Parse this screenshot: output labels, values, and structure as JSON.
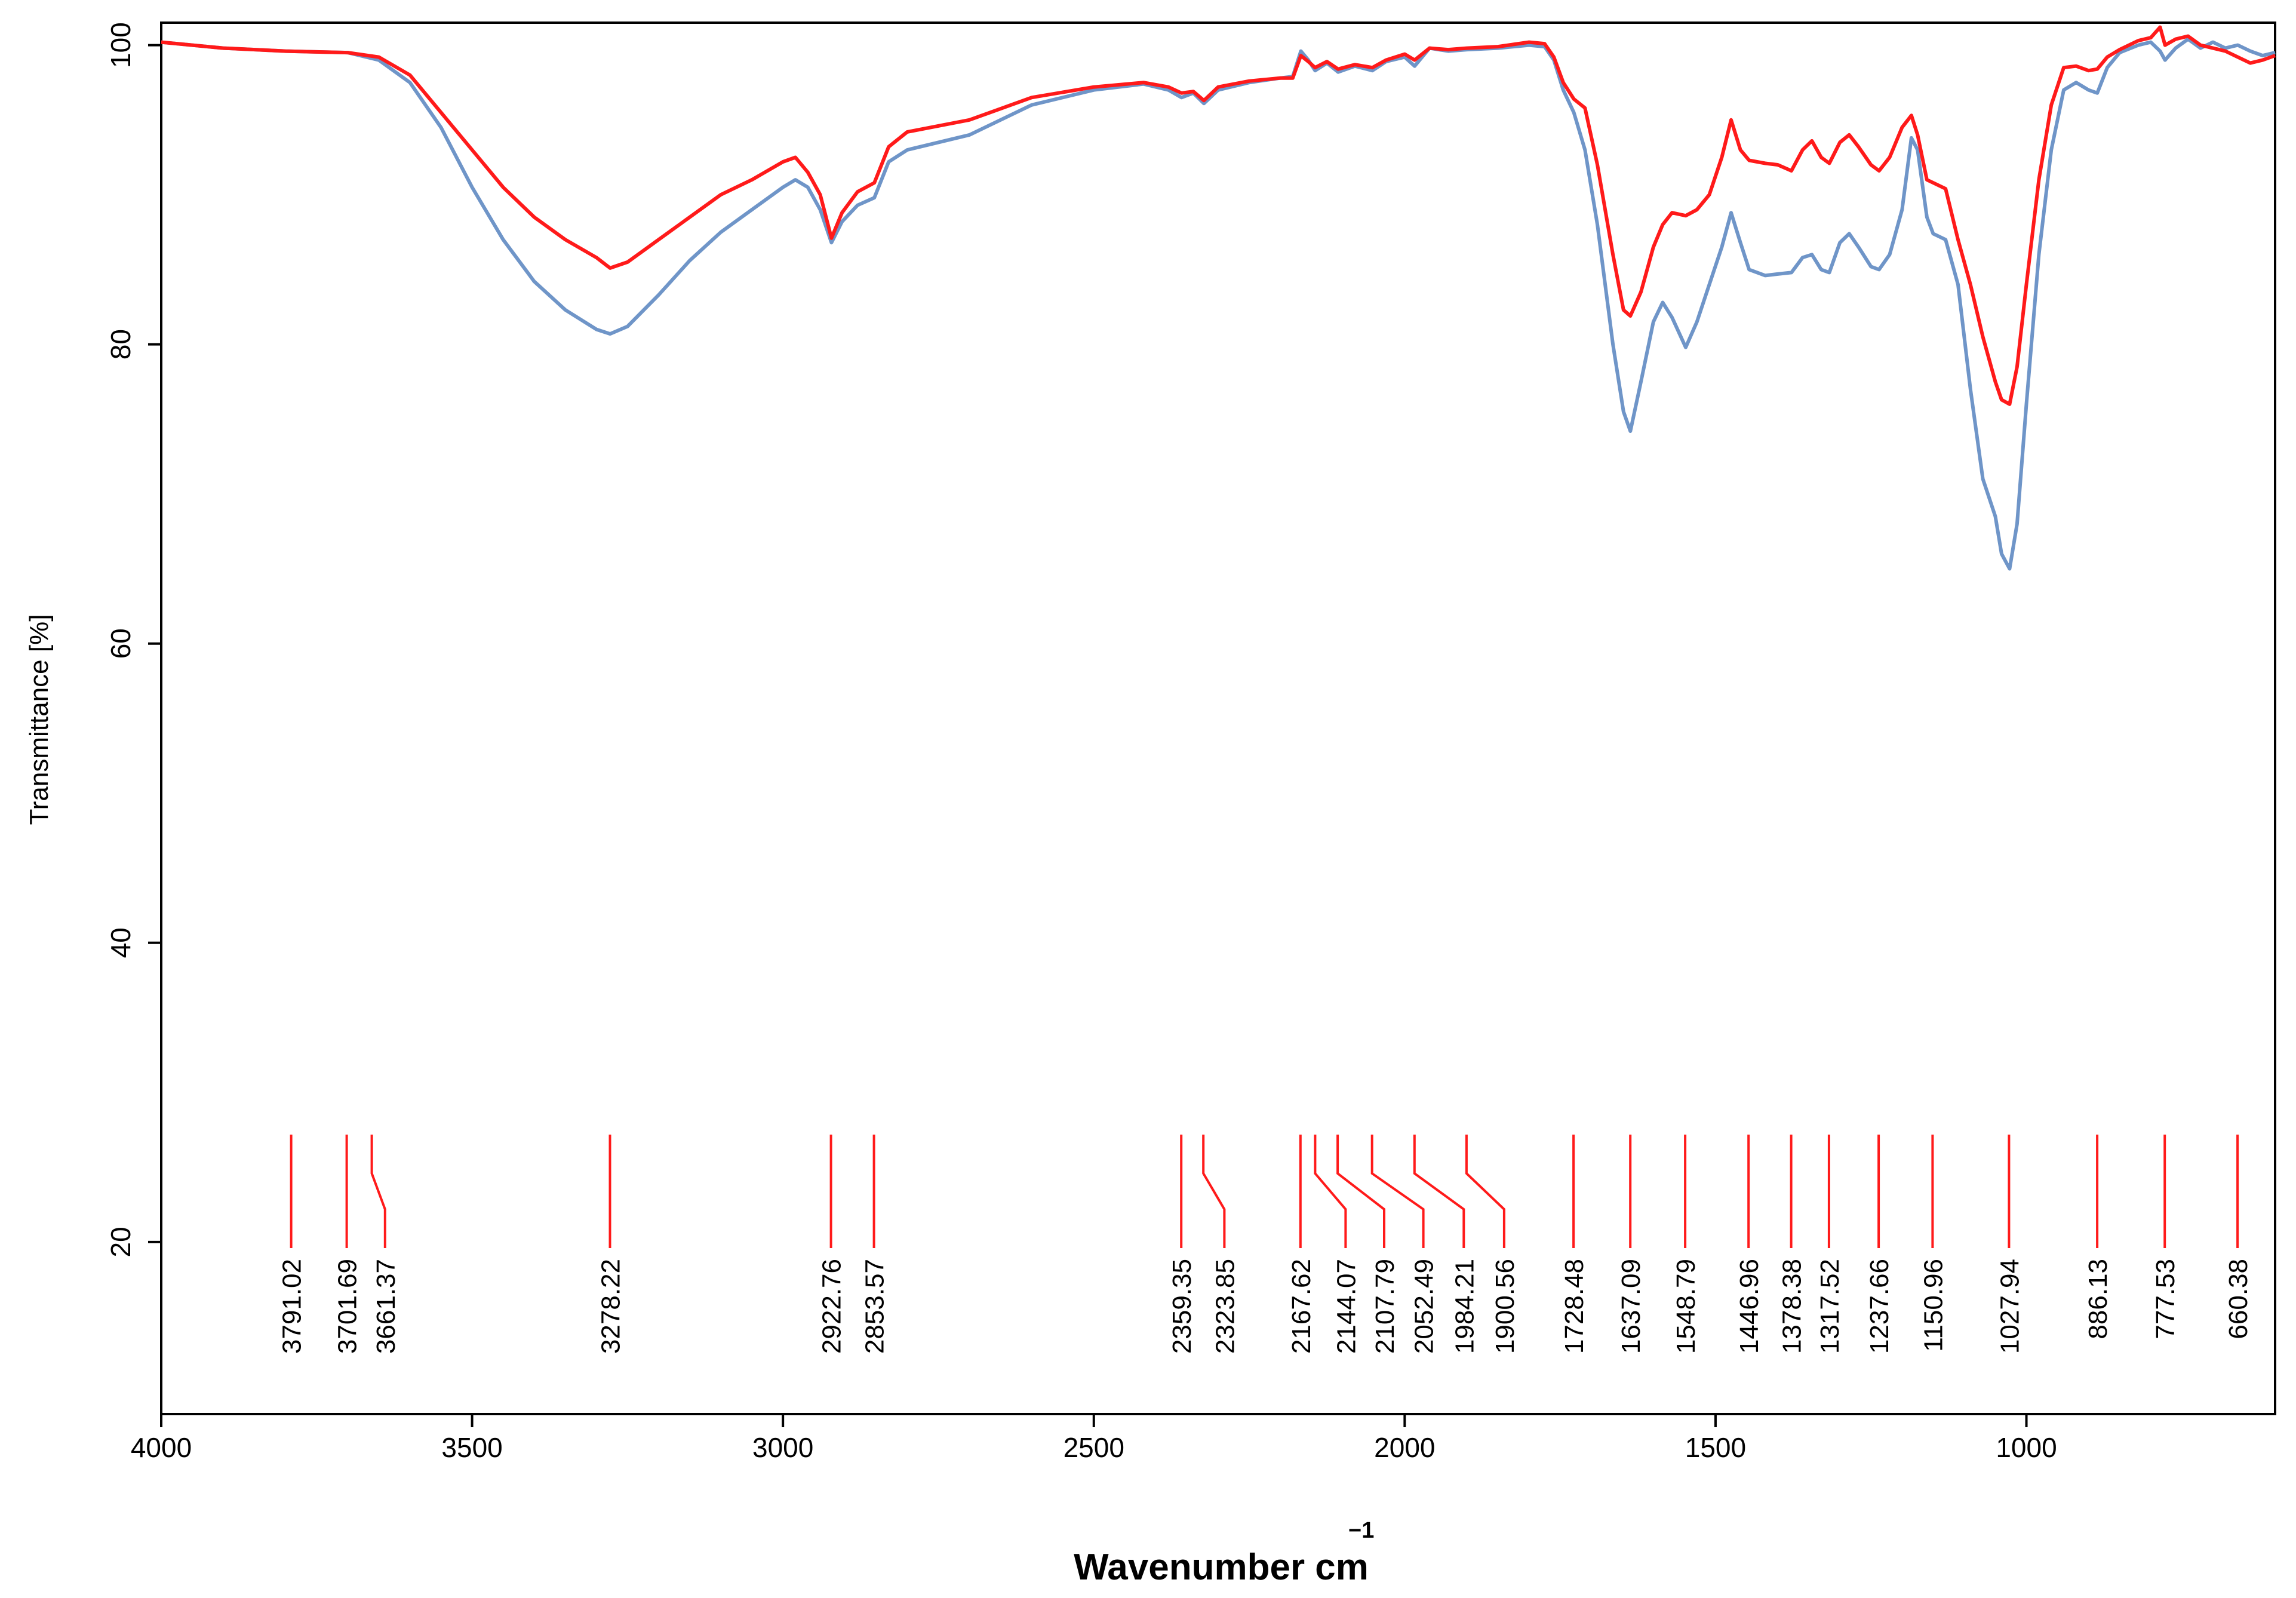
{
  "chart_data": {
    "type": "line",
    "xlabel": "Wavenumber cm",
    "xlabel_superscript": "−1",
    "ylabel": "Transmittance [%]",
    "xlim": [
      4000,
      600
    ],
    "ylim": [
      8.5,
      101.5
    ],
    "x_reversed": true,
    "x_ticks": [
      4000,
      3500,
      3000,
      2500,
      2000,
      1500,
      1000
    ],
    "x_tick_labels": [
      "4000",
      "3500",
      "3000",
      "2500",
      "2000",
      "1500",
      "1000"
    ],
    "y_ticks": [
      20,
      40,
      60,
      80,
      100
    ],
    "y_tick_labels": [
      "20",
      "40",
      "60",
      "80",
      "100"
    ],
    "grid": false,
    "series": [
      {
        "color": "#6f95c8",
        "points": [
          [
            4000,
            100.2
          ],
          [
            3900,
            99.8
          ],
          [
            3800,
            99.6
          ],
          [
            3700,
            99.5
          ],
          [
            3650,
            99.0
          ],
          [
            3600,
            97.5
          ],
          [
            3550,
            94.5
          ],
          [
            3500,
            90.5
          ],
          [
            3450,
            87.0
          ],
          [
            3400,
            84.2
          ],
          [
            3350,
            82.3
          ],
          [
            3300,
            81.0
          ],
          [
            3278,
            80.7
          ],
          [
            3250,
            81.2
          ],
          [
            3200,
            83.3
          ],
          [
            3150,
            85.6
          ],
          [
            3100,
            87.5
          ],
          [
            3050,
            89.0
          ],
          [
            3000,
            90.5
          ],
          [
            2980,
            91.0
          ],
          [
            2960,
            90.5
          ],
          [
            2940,
            89.0
          ],
          [
            2922,
            86.8
          ],
          [
            2905,
            88.2
          ],
          [
            2880,
            89.3
          ],
          [
            2853,
            89.8
          ],
          [
            2830,
            92.2
          ],
          [
            2800,
            93.0
          ],
          [
            2700,
            94.0
          ],
          [
            2600,
            96.0
          ],
          [
            2500,
            97.0
          ],
          [
            2420,
            97.4
          ],
          [
            2380,
            97.0
          ],
          [
            2359,
            96.5
          ],
          [
            2340,
            96.8
          ],
          [
            2323,
            96.1
          ],
          [
            2300,
            97.0
          ],
          [
            2250,
            97.5
          ],
          [
            2200,
            97.8
          ],
          [
            2180,
            97.9
          ],
          [
            2167,
            99.6
          ],
          [
            2155,
            99.0
          ],
          [
            2144,
            98.3
          ],
          [
            2125,
            98.8
          ],
          [
            2107,
            98.2
          ],
          [
            2080,
            98.6
          ],
          [
            2052,
            98.3
          ],
          [
            2030,
            98.9
          ],
          [
            2000,
            99.2
          ],
          [
            1984,
            98.6
          ],
          [
            1960,
            99.8
          ],
          [
            1930,
            99.6
          ],
          [
            1900,
            99.7
          ],
          [
            1850,
            99.8
          ],
          [
            1800,
            100.0
          ],
          [
            1775,
            99.9
          ],
          [
            1760,
            99.0
          ],
          [
            1745,
            97.0
          ],
          [
            1728,
            95.5
          ],
          [
            1710,
            93.0
          ],
          [
            1690,
            88.0
          ],
          [
            1665,
            80.0
          ],
          [
            1648,
            75.5
          ],
          [
            1637,
            74.2
          ],
          [
            1620,
            77.5
          ],
          [
            1600,
            81.5
          ],
          [
            1585,
            82.8
          ],
          [
            1570,
            81.8
          ],
          [
            1548,
            79.8
          ],
          [
            1530,
            81.5
          ],
          [
            1510,
            84.0
          ],
          [
            1490,
            86.5
          ],
          [
            1475,
            88.8
          ],
          [
            1460,
            86.8
          ],
          [
            1446,
            85.0
          ],
          [
            1420,
            84.6
          ],
          [
            1400,
            84.7
          ],
          [
            1378,
            84.8
          ],
          [
            1360,
            85.8
          ],
          [
            1345,
            86.0
          ],
          [
            1330,
            85.0
          ],
          [
            1317,
            84.8
          ],
          [
            1300,
            86.8
          ],
          [
            1285,
            87.4
          ],
          [
            1270,
            86.5
          ],
          [
            1250,
            85.2
          ],
          [
            1237,
            85.0
          ],
          [
            1220,
            86.0
          ],
          [
            1200,
            89.0
          ],
          [
            1185,
            93.8
          ],
          [
            1175,
            93.0
          ],
          [
            1160,
            88.5
          ],
          [
            1150,
            87.4
          ],
          [
            1130,
            87.0
          ],
          [
            1110,
            84.0
          ],
          [
            1090,
            77.0
          ],
          [
            1070,
            71.0
          ],
          [
            1050,
            68.5
          ],
          [
            1040,
            66.0
          ],
          [
            1027,
            65.0
          ],
          [
            1015,
            68.0
          ],
          [
            1000,
            76.0
          ],
          [
            980,
            86.0
          ],
          [
            960,
            93.0
          ],
          [
            940,
            97.0
          ],
          [
            920,
            97.5
          ],
          [
            900,
            97.0
          ],
          [
            886,
            96.8
          ],
          [
            870,
            98.5
          ],
          [
            850,
            99.5
          ],
          [
            820,
            100.0
          ],
          [
            800,
            100.2
          ],
          [
            785,
            99.6
          ],
          [
            777,
            99.0
          ],
          [
            760,
            99.8
          ],
          [
            740,
            100.4
          ],
          [
            720,
            99.8
          ],
          [
            700,
            100.2
          ],
          [
            680,
            99.8
          ],
          [
            660,
            100.0
          ],
          [
            640,
            99.6
          ],
          [
            620,
            99.3
          ],
          [
            600,
            99.5
          ]
        ]
      },
      {
        "color": "#ff1a1a",
        "points": [
          [
            4000,
            100.2
          ],
          [
            3900,
            99.8
          ],
          [
            3800,
            99.6
          ],
          [
            3700,
            99.5
          ],
          [
            3650,
            99.2
          ],
          [
            3600,
            98.0
          ],
          [
            3550,
            95.5
          ],
          [
            3500,
            93.0
          ],
          [
            3450,
            90.5
          ],
          [
            3400,
            88.5
          ],
          [
            3350,
            87.0
          ],
          [
            3300,
            85.8
          ],
          [
            3278,
            85.1
          ],
          [
            3250,
            85.5
          ],
          [
            3200,
            87.0
          ],
          [
            3150,
            88.5
          ],
          [
            3100,
            90.0
          ],
          [
            3050,
            91.0
          ],
          [
            3000,
            92.2
          ],
          [
            2980,
            92.5
          ],
          [
            2960,
            91.5
          ],
          [
            2940,
            90.0
          ],
          [
            2922,
            87.1
          ],
          [
            2905,
            88.8
          ],
          [
            2880,
            90.2
          ],
          [
            2853,
            90.8
          ],
          [
            2830,
            93.2
          ],
          [
            2800,
            94.2
          ],
          [
            2700,
            95.0
          ],
          [
            2600,
            96.5
          ],
          [
            2500,
            97.2
          ],
          [
            2420,
            97.5
          ],
          [
            2380,
            97.2
          ],
          [
            2359,
            96.8
          ],
          [
            2340,
            96.9
          ],
          [
            2323,
            96.3
          ],
          [
            2300,
            97.2
          ],
          [
            2250,
            97.6
          ],
          [
            2200,
            97.8
          ],
          [
            2180,
            97.8
          ],
          [
            2167,
            99.3
          ],
          [
            2155,
            98.9
          ],
          [
            2144,
            98.5
          ],
          [
            2125,
            98.9
          ],
          [
            2107,
            98.4
          ],
          [
            2080,
            98.7
          ],
          [
            2052,
            98.5
          ],
          [
            2030,
            99.0
          ],
          [
            2000,
            99.4
          ],
          [
            1984,
            99.0
          ],
          [
            1960,
            99.8
          ],
          [
            1930,
            99.7
          ],
          [
            1900,
            99.8
          ],
          [
            1850,
            99.9
          ],
          [
            1800,
            100.2
          ],
          [
            1775,
            100.1
          ],
          [
            1760,
            99.2
          ],
          [
            1745,
            97.5
          ],
          [
            1728,
            96.4
          ],
          [
            1710,
            95.8
          ],
          [
            1690,
            92.0
          ],
          [
            1665,
            86.0
          ],
          [
            1648,
            82.3
          ],
          [
            1637,
            81.9
          ],
          [
            1620,
            83.5
          ],
          [
            1600,
            86.5
          ],
          [
            1585,
            88.0
          ],
          [
            1570,
            88.8
          ],
          [
            1548,
            88.6
          ],
          [
            1530,
            89.0
          ],
          [
            1510,
            90.0
          ],
          [
            1490,
            92.5
          ],
          [
            1475,
            95.0
          ],
          [
            1460,
            93.0
          ],
          [
            1446,
            92.3
          ],
          [
            1420,
            92.1
          ],
          [
            1400,
            92.0
          ],
          [
            1378,
            91.6
          ],
          [
            1360,
            93.0
          ],
          [
            1345,
            93.6
          ],
          [
            1330,
            92.5
          ],
          [
            1317,
            92.1
          ],
          [
            1300,
            93.5
          ],
          [
            1285,
            94.0
          ],
          [
            1270,
            93.2
          ],
          [
            1250,
            92.0
          ],
          [
            1237,
            91.6
          ],
          [
            1220,
            92.5
          ],
          [
            1200,
            94.5
          ],
          [
            1185,
            95.3
          ],
          [
            1175,
            94.0
          ],
          [
            1160,
            91.0
          ],
          [
            1150,
            90.8
          ],
          [
            1130,
            90.4
          ],
          [
            1110,
            87.0
          ],
          [
            1090,
            84.0
          ],
          [
            1070,
            80.5
          ],
          [
            1050,
            77.5
          ],
          [
            1040,
            76.3
          ],
          [
            1027,
            76.0
          ],
          [
            1015,
            78.5
          ],
          [
            1000,
            84.0
          ],
          [
            980,
            91.0
          ],
          [
            960,
            96.0
          ],
          [
            940,
            98.5
          ],
          [
            920,
            98.6
          ],
          [
            900,
            98.3
          ],
          [
            886,
            98.4
          ],
          [
            870,
            99.2
          ],
          [
            850,
            99.7
          ],
          [
            820,
            100.3
          ],
          [
            800,
            100.5
          ],
          [
            785,
            101.2
          ],
          [
            777,
            100.0
          ],
          [
            760,
            100.4
          ],
          [
            740,
            100.6
          ],
          [
            720,
            100.0
          ],
          [
            700,
            99.8
          ],
          [
            680,
            99.6
          ],
          [
            660,
            99.2
          ],
          [
            640,
            98.8
          ],
          [
            620,
            99.0
          ],
          [
            600,
            99.3
          ]
        ]
      }
    ],
    "peak_markers": [
      {
        "label": "3791.02",
        "x": 3791.02,
        "x_top": 3791.02
      },
      {
        "label": "3701.69",
        "x": 3701.69,
        "x_top": 3701.69
      },
      {
        "label": "3661.37",
        "x": 3640,
        "x_top": 3661.37
      },
      {
        "label": "3278.22",
        "x": 3278.22,
        "x_top": 3278.22
      },
      {
        "label": "2922.76",
        "x": 2922.76,
        "x_top": 2922.76
      },
      {
        "label": "2853.57",
        "x": 2853.57,
        "x_top": 2853.57
      },
      {
        "label": "2359.35",
        "x": 2359.35,
        "x_top": 2359.35
      },
      {
        "label": "2323.85",
        "x": 2290,
        "x_top": 2323.85
      },
      {
        "label": "2167.62",
        "x": 2167.62,
        "x_top": 2167.62
      },
      {
        "label": "2144.07",
        "x": 2095,
        "x_top": 2144.07
      },
      {
        "label": "2107.79",
        "x": 2033,
        "x_top": 2107.79
      },
      {
        "label": "2052.49",
        "x": 1970,
        "x_top": 2052.49
      },
      {
        "label": "1984.21",
        "x": 1905,
        "x_top": 1984.21
      },
      {
        "label": "1900.56",
        "x": 1840,
        "x_top": 1900.56
      },
      {
        "label": "1728.48",
        "x": 1728.48,
        "x_top": 1728.48
      },
      {
        "label": "1637.09",
        "x": 1637.09,
        "x_top": 1637.09
      },
      {
        "label": "1548.79",
        "x": 1548.79,
        "x_top": 1548.79
      },
      {
        "label": "1446.96",
        "x": 1446.96,
        "x_top": 1446.96
      },
      {
        "label": "1378.38",
        "x": 1378.38,
        "x_top": 1378.38
      },
      {
        "label": "1317.52",
        "x": 1317.52,
        "x_top": 1317.52
      },
      {
        "label": "1237.66",
        "x": 1237.66,
        "x_top": 1237.66
      },
      {
        "label": "1150.96",
        "x": 1150.96,
        "x_top": 1150.96
      },
      {
        "label": "1027.94",
        "x": 1027.94,
        "x_top": 1027.94
      },
      {
        "label": "886.13",
        "x": 886.13,
        "x_top": 886.13
      },
      {
        "label": "777.53",
        "x": 777.53,
        "x_top": 777.53
      },
      {
        "label": "660.38",
        "x": 660.38,
        "x_top": 660.38
      }
    ],
    "peak_marker_color": "#ff1a1a"
  }
}
